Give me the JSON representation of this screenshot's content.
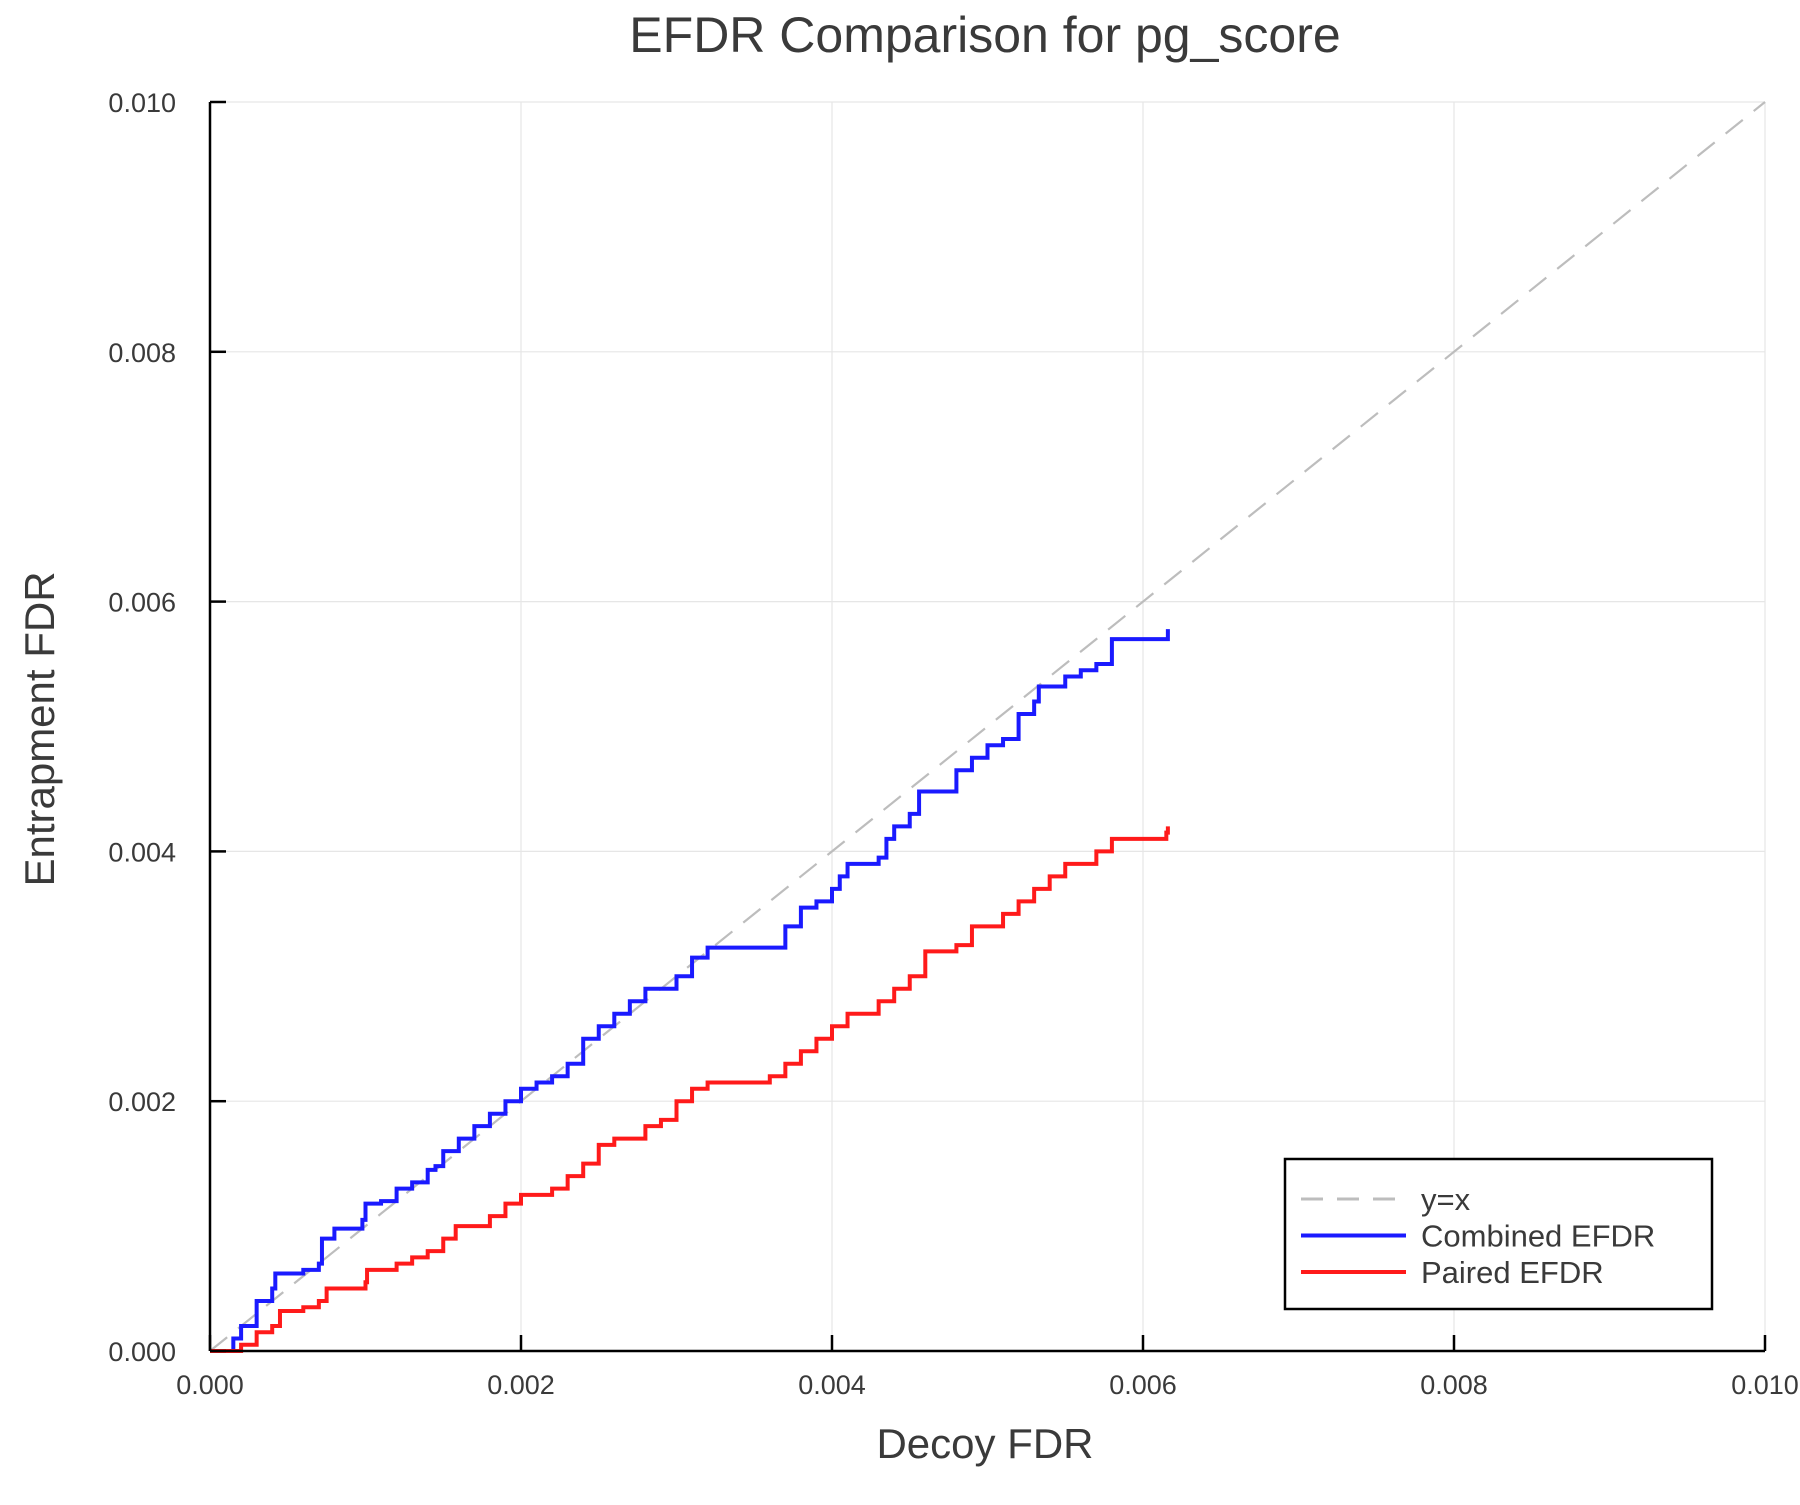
{
  "chart_data": {
    "type": "line",
    "title": "EFDR Comparison for pg_score",
    "xlabel": "Decoy FDR",
    "ylabel": "Entrapment FDR",
    "xlim": [
      0,
      0.01
    ],
    "ylim": [
      0,
      0.01
    ],
    "xticks": [
      "0.000",
      "0.002",
      "0.004",
      "0.006",
      "0.008",
      "0.010"
    ],
    "yticks": [
      "0.000",
      "0.002",
      "0.004",
      "0.006",
      "0.008",
      "0.010"
    ],
    "grid": true,
    "legend_position": "bottom-right",
    "series": [
      {
        "name": "y=x",
        "color": "#bdbdbd",
        "style": "dashed",
        "points": [
          [
            0,
            0
          ],
          [
            0.01,
            0.01
          ]
        ]
      },
      {
        "name": "Combined EFDR",
        "color": "#1a1aff",
        "style": "steps",
        "points": [
          [
            0,
            0
          ],
          [
            0.0001,
            0
          ],
          [
            0.00015,
            0.0001
          ],
          [
            0.0002,
            0.0002
          ],
          [
            0.0003,
            0.0004
          ],
          [
            0.0004,
            0.0005
          ],
          [
            0.00042,
            0.00062
          ],
          [
            0.0006,
            0.00065
          ],
          [
            0.0007,
            0.0007
          ],
          [
            0.00072,
            0.0009
          ],
          [
            0.0008,
            0.00098
          ],
          [
            0.00098,
            0.00105
          ],
          [
            0.001,
            0.00118
          ],
          [
            0.0011,
            0.0012
          ],
          [
            0.0012,
            0.0013
          ],
          [
            0.0013,
            0.00135
          ],
          [
            0.0014,
            0.00145
          ],
          [
            0.00145,
            0.00148
          ],
          [
            0.0015,
            0.0016
          ],
          [
            0.0016,
            0.0017
          ],
          [
            0.0017,
            0.0018
          ],
          [
            0.0018,
            0.0019
          ],
          [
            0.0019,
            0.002
          ],
          [
            0.002,
            0.0021
          ],
          [
            0.0021,
            0.00215
          ],
          [
            0.0022,
            0.0022
          ],
          [
            0.0023,
            0.0023
          ],
          [
            0.0024,
            0.0025
          ],
          [
            0.0025,
            0.0026
          ],
          [
            0.0026,
            0.0027
          ],
          [
            0.0027,
            0.0028
          ],
          [
            0.0028,
            0.0029
          ],
          [
            0.003,
            0.003
          ],
          [
            0.0031,
            0.00315
          ],
          [
            0.0032,
            0.00323
          ],
          [
            0.00365,
            0.00323
          ],
          [
            0.0037,
            0.0034
          ],
          [
            0.0038,
            0.00355
          ],
          [
            0.0039,
            0.0036
          ],
          [
            0.004,
            0.0037
          ],
          [
            0.00405,
            0.0038
          ],
          [
            0.0041,
            0.0039
          ],
          [
            0.0043,
            0.00395
          ],
          [
            0.00435,
            0.0041
          ],
          [
            0.0044,
            0.0042
          ],
          [
            0.0045,
            0.0043
          ],
          [
            0.00456,
            0.00448
          ],
          [
            0.0048,
            0.00465
          ],
          [
            0.0049,
            0.00475
          ],
          [
            0.005,
            0.00485
          ],
          [
            0.0051,
            0.0049
          ],
          [
            0.0052,
            0.0051
          ],
          [
            0.0053,
            0.0052
          ],
          [
            0.00533,
            0.00532
          ],
          [
            0.0055,
            0.0054
          ],
          [
            0.0056,
            0.00545
          ],
          [
            0.0057,
            0.0055
          ],
          [
            0.0058,
            0.0057
          ],
          [
            0.00615,
            0.0057
          ],
          [
            0.00616,
            0.00578
          ]
        ]
      },
      {
        "name": "Paired EFDR",
        "color": "#ff1a1a",
        "style": "steps",
        "points": [
          [
            0,
            0
          ],
          [
            0.0002,
            5e-05
          ],
          [
            0.0003,
            0.00015
          ],
          [
            0.0004,
            0.0002
          ],
          [
            0.00045,
            0.00032
          ],
          [
            0.0006,
            0.00035
          ],
          [
            0.0007,
            0.0004
          ],
          [
            0.00075,
            0.0005
          ],
          [
            0.001,
            0.00055
          ],
          [
            0.00101,
            0.00065
          ],
          [
            0.0012,
            0.0007
          ],
          [
            0.0013,
            0.00075
          ],
          [
            0.0014,
            0.0008
          ],
          [
            0.0015,
            0.0009
          ],
          [
            0.00158,
            0.001
          ],
          [
            0.0018,
            0.00108
          ],
          [
            0.0019,
            0.00118
          ],
          [
            0.002,
            0.00125
          ],
          [
            0.0022,
            0.0013
          ],
          [
            0.0023,
            0.0014
          ],
          [
            0.0024,
            0.0015
          ],
          [
            0.0025,
            0.00165
          ],
          [
            0.0026,
            0.0017
          ],
          [
            0.0028,
            0.0018
          ],
          [
            0.0029,
            0.00185
          ],
          [
            0.003,
            0.002
          ],
          [
            0.0031,
            0.0021
          ],
          [
            0.0032,
            0.00215
          ],
          [
            0.0036,
            0.0022
          ],
          [
            0.0037,
            0.0023
          ],
          [
            0.0038,
            0.0024
          ],
          [
            0.0039,
            0.0025
          ],
          [
            0.004,
            0.0026
          ],
          [
            0.0041,
            0.0027
          ],
          [
            0.0043,
            0.0028
          ],
          [
            0.0044,
            0.0029
          ],
          [
            0.0045,
            0.003
          ],
          [
            0.0046,
            0.0032
          ],
          [
            0.0048,
            0.00325
          ],
          [
            0.0049,
            0.0034
          ],
          [
            0.0051,
            0.0035
          ],
          [
            0.0052,
            0.0036
          ],
          [
            0.0053,
            0.0037
          ],
          [
            0.0054,
            0.0038
          ],
          [
            0.0055,
            0.0039
          ],
          [
            0.0057,
            0.004
          ],
          [
            0.0058,
            0.0041
          ],
          [
            0.00615,
            0.00415
          ],
          [
            0.00616,
            0.0042
          ]
        ]
      }
    ]
  }
}
